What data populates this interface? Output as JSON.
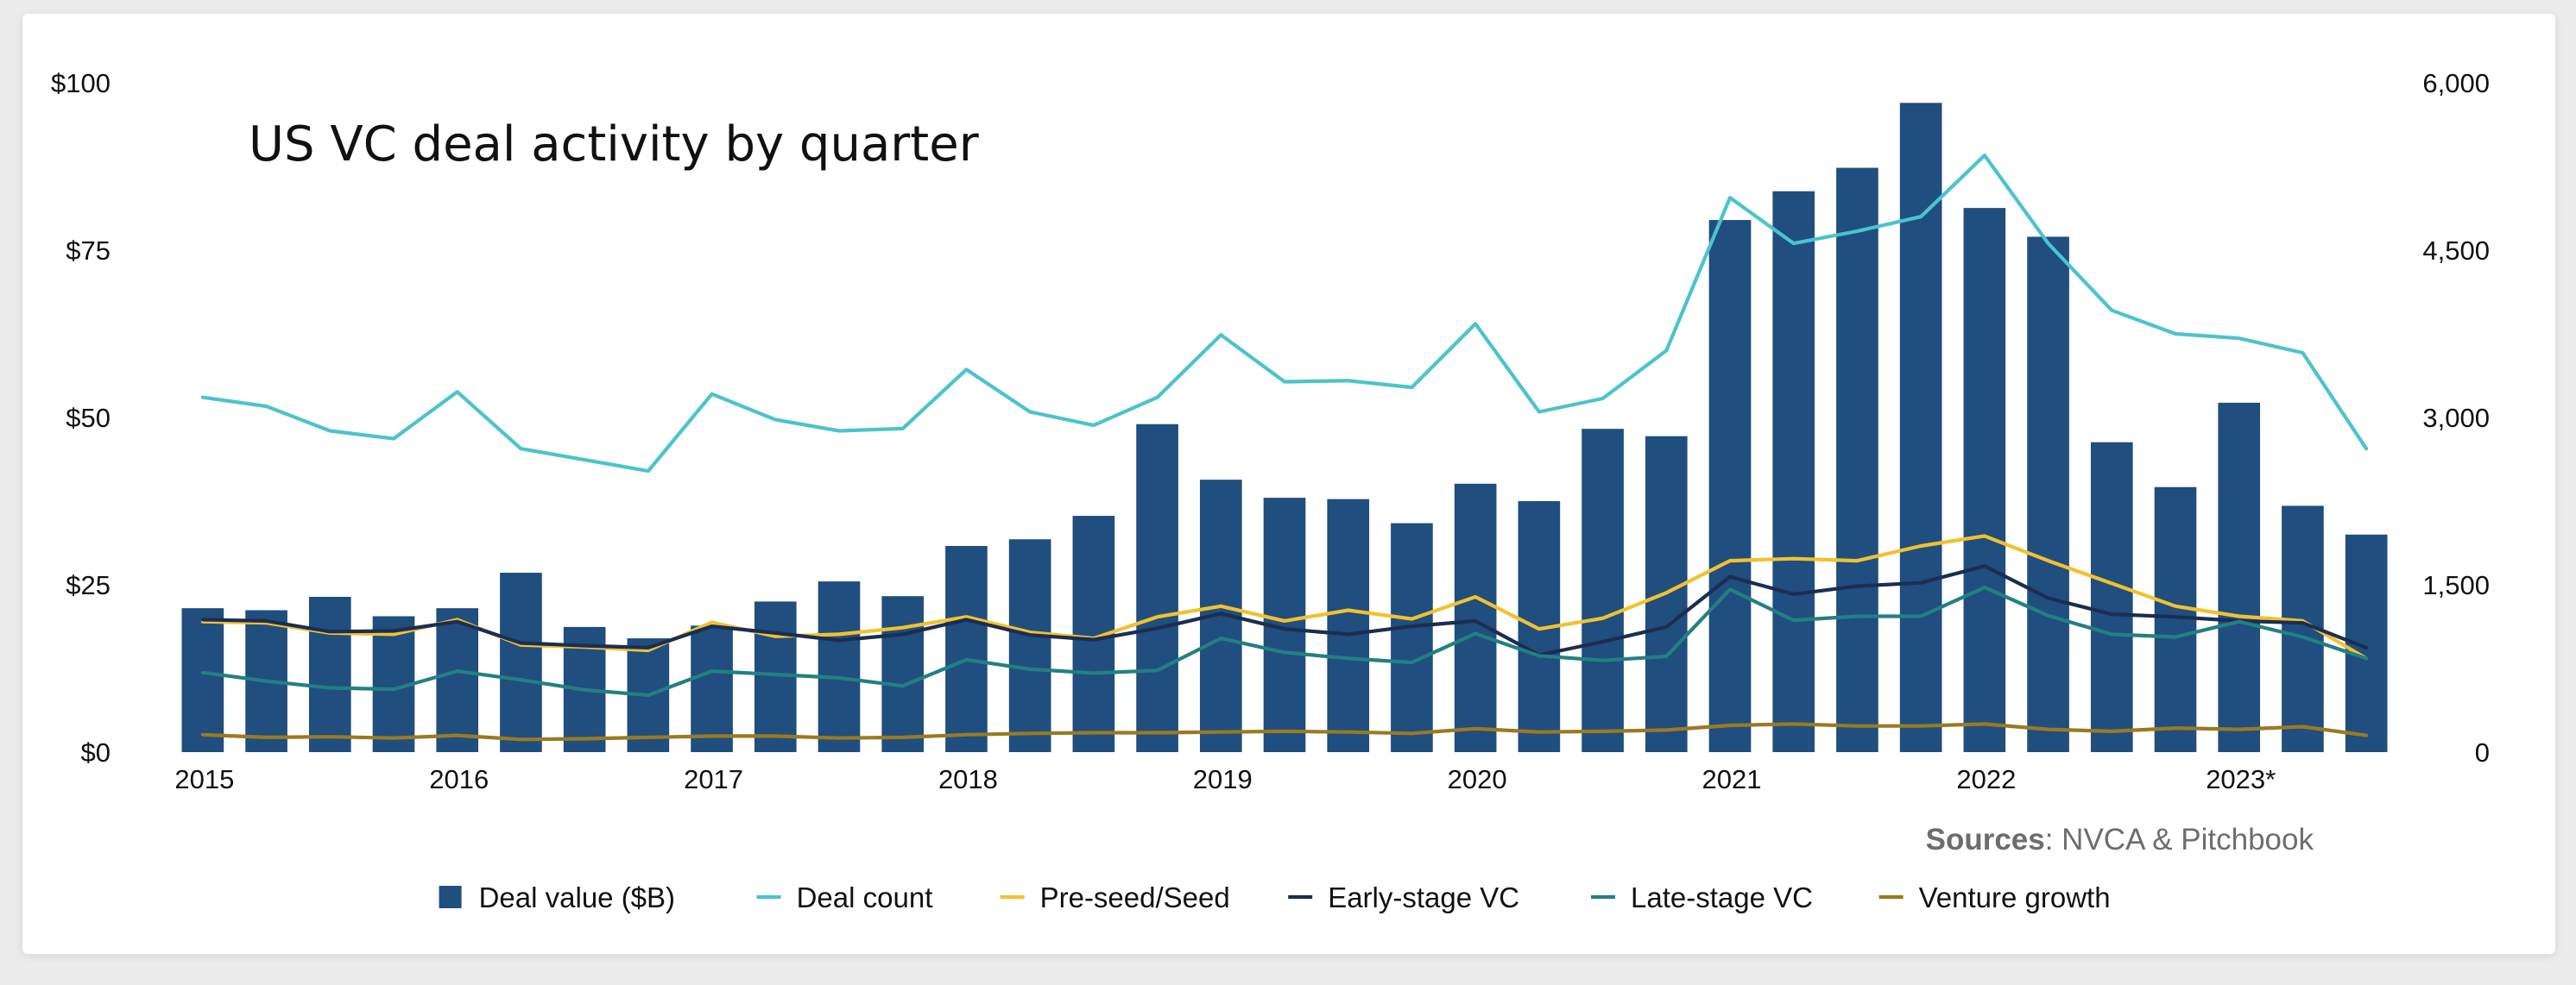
{
  "chart_data": {
    "type": "bar",
    "title": "US VC deal activity by quarter",
    "source_label": "Sources",
    "source_text": ": NVCA & Pitchbook",
    "x": [
      "2015 Q1",
      "2015 Q2",
      "2015 Q3",
      "2015 Q4",
      "2016 Q1",
      "2016 Q2",
      "2016 Q3",
      "2016 Q4",
      "2017 Q1",
      "2017 Q2",
      "2017 Q3",
      "2017 Q4",
      "2018 Q1",
      "2018 Q2",
      "2018 Q3",
      "2018 Q4",
      "2019 Q1",
      "2019 Q2",
      "2019 Q3",
      "2019 Q4",
      "2020 Q1",
      "2020 Q2",
      "2020 Q3",
      "2020 Q4",
      "2021 Q1",
      "2021 Q2",
      "2021 Q3",
      "2021 Q4",
      "2022 Q1",
      "2022 Q2",
      "2022 Q3",
      "2022 Q4",
      "2023 Q1",
      "2023 Q2",
      "2023 Q3"
    ],
    "x_tick_labels": [
      "2015",
      "2016",
      "2017",
      "2018",
      "2019",
      "2020",
      "2021",
      "2022",
      "2023*"
    ],
    "x_tick_index": [
      0,
      4,
      8,
      12,
      16,
      20,
      24,
      28,
      32
    ],
    "y_left": {
      "ticks": [
        "$0",
        "$25",
        "$50",
        "$75",
        "$100"
      ],
      "tick_values": [
        0,
        25,
        50,
        75,
        100
      ],
      "range": [
        0,
        100
      ]
    },
    "y_right": {
      "ticks": [
        "0",
        "1,500",
        "3,000",
        "4,500",
        "6,000"
      ],
      "tick_values": [
        0,
        1500,
        3000,
        4500,
        6000
      ],
      "range": [
        0,
        6000
      ]
    },
    "legend_position": "bottom",
    "grid": false,
    "series": [
      {
        "name": "Deal value ($B)",
        "type": "bar",
        "axis": "left",
        "color": "#1f4e7f",
        "values": [
          21.5,
          21.2,
          23.2,
          20.3,
          21.5,
          26.8,
          18.7,
          17.0,
          18.9,
          22.5,
          25.5,
          23.3,
          30.8,
          31.8,
          35.3,
          49.0,
          40.7,
          38.0,
          37.8,
          34.2,
          40.1,
          37.5,
          48.3,
          47.2,
          79.5,
          83.8,
          87.3,
          97.0,
          81.3,
          77.0,
          46.3,
          39.6,
          52.2,
          36.8,
          32.5
        ]
      },
      {
        "name": "Deal count",
        "type": "line",
        "axis": "right",
        "color": "#4cc3cd",
        "values": [
          3180,
          3100,
          2880,
          2810,
          3230,
          2720,
          2620,
          2520,
          3210,
          2980,
          2880,
          2900,
          3430,
          3050,
          2930,
          3180,
          3740,
          3320,
          3330,
          3270,
          3840,
          3050,
          3170,
          3600,
          4970,
          4560,
          4670,
          4800,
          5350,
          4560,
          3960,
          3750,
          3710,
          3580,
          2720
        ]
      },
      {
        "name": "Pre-seed/Seed",
        "type": "line",
        "axis": "left",
        "color": "#f2c12e",
        "values": [
          19.5,
          19.3,
          17.8,
          17.6,
          19.8,
          16.0,
          15.7,
          15.2,
          19.4,
          17.3,
          17.6,
          18.6,
          20.2,
          17.9,
          17.0,
          20.2,
          21.8,
          19.6,
          21.2,
          19.9,
          23.2,
          18.4,
          20.0,
          23.8,
          28.6,
          28.9,
          28.6,
          30.8,
          32.3,
          28.6,
          25.2,
          21.8,
          20.3,
          19.6,
          14.0
        ]
      },
      {
        "name": "Early-stage VC",
        "type": "line",
        "axis": "left",
        "color": "#1c2d52",
        "values": [
          19.8,
          19.6,
          18.0,
          18.1,
          19.5,
          16.3,
          15.9,
          15.6,
          18.8,
          17.8,
          16.7,
          17.6,
          19.8,
          17.5,
          16.8,
          18.5,
          20.7,
          18.4,
          17.6,
          18.8,
          19.6,
          14.5,
          16.5,
          18.7,
          26.2,
          23.6,
          24.8,
          25.3,
          27.8,
          23.0,
          20.6,
          20.2,
          19.6,
          19.3,
          15.6
        ]
      },
      {
        "name": "Late-stage VC",
        "type": "line",
        "axis": "left",
        "color": "#247f82",
        "values": [
          11.9,
          10.6,
          9.6,
          9.4,
          12.1,
          10.8,
          9.3,
          8.5,
          12.1,
          11.6,
          11.1,
          9.9,
          13.8,
          12.4,
          11.8,
          12.2,
          17.0,
          14.9,
          14.0,
          13.4,
          17.7,
          14.4,
          13.7,
          14.3,
          24.3,
          19.7,
          20.3,
          20.3,
          24.6,
          20.4,
          17.6,
          17.2,
          19.5,
          17.2,
          14.0
        ]
      },
      {
        "name": "Venture growth",
        "type": "line",
        "axis": "left",
        "color": "#9a7a21",
        "values": [
          2.6,
          2.2,
          2.3,
          2.1,
          2.5,
          1.9,
          2.0,
          2.2,
          2.4,
          2.4,
          2.1,
          2.2,
          2.6,
          2.8,
          2.9,
          2.9,
          3.0,
          3.1,
          3.0,
          2.8,
          3.5,
          3.0,
          3.1,
          3.3,
          4.0,
          4.2,
          3.9,
          3.9,
          4.2,
          3.4,
          3.1,
          3.6,
          3.4,
          3.8,
          2.5
        ]
      }
    ]
  }
}
